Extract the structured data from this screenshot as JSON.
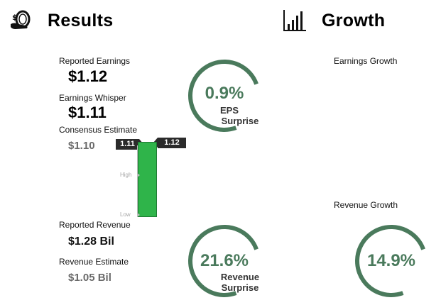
{
  "results": {
    "title": "Results",
    "icon": "coin-hand-icon",
    "reported_earnings": {
      "label": "Reported Earnings",
      "value": "$1.12"
    },
    "earnings_whisper": {
      "label": "Earnings Whisper",
      "value": "$1.11"
    },
    "consensus_estimate": {
      "label": "Consensus Estimate",
      "value": "$1.10"
    },
    "eps_surprise": {
      "percent": "0.9%",
      "line1": "EPS",
      "line2": "Surprise",
      "fraction": 0.75
    },
    "range_chart": {
      "whisper_tag": "1.11",
      "reported_tag": "1.12",
      "high_label": "High",
      "low_label": "Low",
      "bar_color": "#2fb44a"
    },
    "reported_revenue": {
      "label": "Reported Revenue",
      "value": "$1.28 Bil"
    },
    "revenue_estimate": {
      "label": "Revenue Estimate",
      "value": "$1.05 Bil"
    },
    "revenue_surprise": {
      "percent": "21.6%",
      "line1": "Revenue",
      "line2": "Surprise",
      "fraction": 0.75
    }
  },
  "growth": {
    "title": "Growth",
    "icon": "bar-chart-icon",
    "earnings_growth": {
      "label": "Earnings Growth"
    },
    "revenue_growth": {
      "label": "Revenue Growth",
      "percent": "14.9%",
      "fraction": 0.75
    }
  },
  "colors": {
    "gauge": "#4a7a5c",
    "dark_tag": "#2b2b2b"
  }
}
